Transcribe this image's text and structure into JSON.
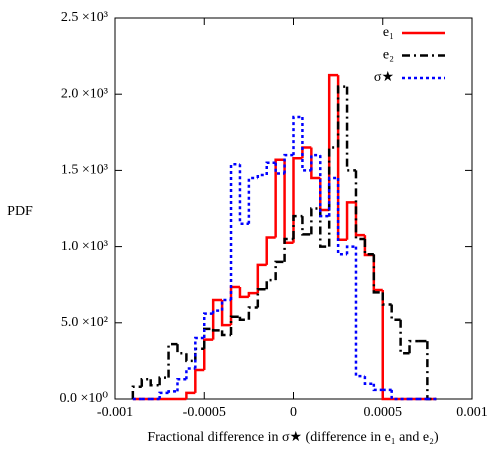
{
  "chart_data": {
    "type": "histogram",
    "x_label": "Fractional difference in σ★ (difference in e₁ and e₂)",
    "y_label": "PDF",
    "bins": [
      -0.0009,
      -0.00085,
      -0.0008,
      -0.00075,
      -0.0007,
      -0.00065,
      -0.0006,
      -0.00055,
      -0.0005,
      -0.00045,
      -0.0004,
      -0.00035,
      -0.0003,
      -0.00025,
      -0.0002,
      -0.00015,
      -0.0001,
      -5e-05,
      0,
      5e-05,
      0.0001,
      0.00015,
      0.0002,
      0.00025,
      0.0003,
      0.00035,
      0.0004,
      0.00045,
      0.0005,
      0.00055,
      0.0006,
      0.00065,
      0.0007,
      0.00075,
      0.0008
    ],
    "series": [
      {
        "name": "e₁",
        "color": "#ff0000",
        "dash": "solid",
        "values": [
          0,
          0,
          0,
          0,
          0,
          0,
          40,
          190,
          390,
          650,
          485,
          735,
          670,
          695,
          880,
          1060,
          1570,
          1025,
          1580,
          1650,
          1450,
          1240,
          2125,
          1045,
          1290,
          1075,
          945,
          715,
          0,
          0,
          0,
          0,
          0,
          0
        ]
      },
      {
        "name": "e₂",
        "color": "#000000",
        "dash": "dashdot",
        "values": [
          80,
          130,
          90,
          140,
          360,
          300,
          250,
          330,
          460,
          450,
          420,
          540,
          520,
          600,
          720,
          780,
          900,
          1050,
          1200,
          1080,
          1250,
          1000,
          1650,
          2050,
          1500,
          1050,
          950,
          700,
          620,
          520,
          300,
          380,
          380,
          0
        ]
      },
      {
        "name": "σ★",
        "color": "#0000ff",
        "dash": "dotted",
        "values": [
          0,
          0,
          0,
          40,
          50,
          130,
          200,
          400,
          560,
          580,
          650,
          1540,
          1150,
          1450,
          1470,
          1550,
          1480,
          1600,
          1850,
          1500,
          1600,
          1200,
          1450,
          950,
          1000,
          150,
          100,
          60,
          60,
          0,
          0,
          0,
          0,
          0
        ]
      }
    ],
    "xlim": [
      -0.001,
      0.001
    ],
    "xticks": [
      -0.001,
      -0.0005,
      0,
      0.0005,
      0.001
    ],
    "ylim": [
      0,
      2500
    ],
    "yticks": [
      {
        "value": 0,
        "label": "0.0 ×10⁰"
      },
      {
        "value": 500,
        "label": "5.0 ×10²"
      },
      {
        "value": 1000,
        "label": "1.0 ×10³"
      },
      {
        "value": 1500,
        "label": "1.5 ×10³"
      },
      {
        "value": 2000,
        "label": "2.0 ×10³"
      },
      {
        "value": 2500,
        "label": "2.5 ×10³"
      }
    ],
    "legend": "upper right",
    "grid": false
  }
}
